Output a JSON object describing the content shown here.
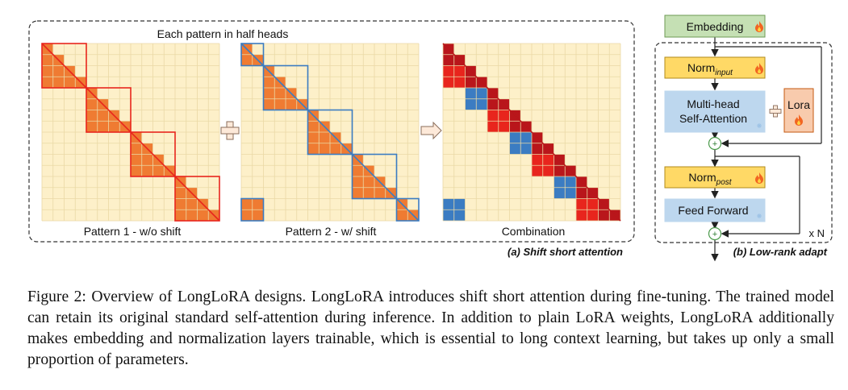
{
  "figure": {
    "panel_a": {
      "heading": "Each pattern in half heads",
      "pattern1_label": "Pattern 1 - w/o shift",
      "pattern2_label": "Pattern 2 - w/ shift",
      "combination_label": "Combination",
      "caption": "(a) Shift short attention",
      "colors": {
        "background_cell": "#fdf0c9",
        "grid_line": "#ead9a6",
        "orange": "#ef7b32",
        "red": "#e8251d",
        "blue": "#3b7cc2",
        "dark_red": "#b9161b",
        "dark_blue": "#2d5f9d"
      }
    },
    "panel_b": {
      "embedding_label": "Embedding",
      "norm_input_label": "Norm",
      "norm_input_sub": "input",
      "attention_line1": "Multi-head",
      "attention_line2": "Self-Attention",
      "lora_label": "Lora",
      "norm_post_label": "Norm",
      "norm_post_sub": "post",
      "ffn_label": "Feed Forward",
      "repeat_label": "x N",
      "caption": "(b) Low-rank adapt",
      "add_symbol": "+",
      "plus_symbol": "+",
      "fire_icon": "fire-icon",
      "snowflake_icon": "snowflake-icon",
      "colors": {
        "green": "#c5e0b4",
        "yellow": "#ffd966",
        "blue_box": "#bdd7ee",
        "lora": "#f8cbad"
      }
    }
  },
  "caption_text": "Figure 2: Overview of LongLoRA designs. LongLoRA introduces shift short attention during fine-tuning. The trained model can retain its original standard self-attention during inference. In addition to plain LoRA weights, LongLoRA additionally makes embedding and normalization layers trainable, which is essential to long context learning, but takes up only a small proportion of parameters."
}
